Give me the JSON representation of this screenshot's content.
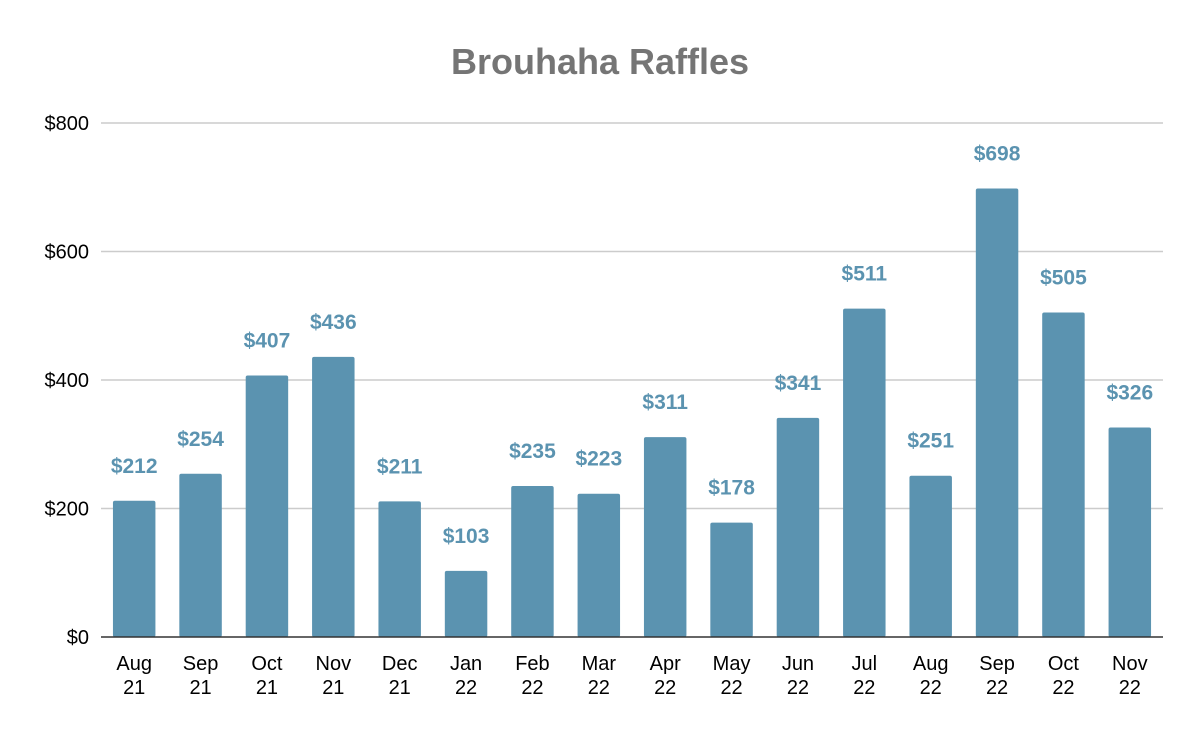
{
  "chart_data": {
    "type": "bar",
    "title": "Brouhaha Raffles",
    "xlabel": "",
    "ylabel": "",
    "categories": [
      [
        "Aug",
        "21"
      ],
      [
        "Sep",
        "21"
      ],
      [
        "Oct",
        "21"
      ],
      [
        "Nov",
        "21"
      ],
      [
        "Dec",
        "21"
      ],
      [
        "Jan",
        "22"
      ],
      [
        "Feb",
        "22"
      ],
      [
        "Mar",
        "22"
      ],
      [
        "Apr",
        "22"
      ],
      [
        "May",
        "22"
      ],
      [
        "Jun",
        "22"
      ],
      [
        "Jul",
        "22"
      ],
      [
        "Aug",
        "22"
      ],
      [
        "Sep",
        "22"
      ],
      [
        "Oct",
        "22"
      ],
      [
        "Nov",
        "22"
      ]
    ],
    "values": [
      212,
      254,
      407,
      436,
      211,
      103,
      235,
      223,
      311,
      178,
      341,
      511,
      251,
      698,
      505,
      326
    ],
    "data_labels": [
      "$212",
      "$254",
      "$407",
      "$436",
      "$211",
      "$103",
      "$235",
      "$223",
      "$311",
      "$178",
      "$341",
      "$511",
      "$251",
      "$698",
      "$505",
      "$326"
    ],
    "ylim": [
      0,
      800
    ],
    "yticks": [
      0,
      200,
      400,
      600,
      800
    ],
    "ytick_labels": [
      "$0",
      "$200",
      "$400",
      "$600",
      "$800"
    ],
    "grid": true,
    "legend": "none",
    "colors": {
      "bar": "#5b93b0",
      "label": "#5b93b0",
      "title": "#757575"
    }
  }
}
